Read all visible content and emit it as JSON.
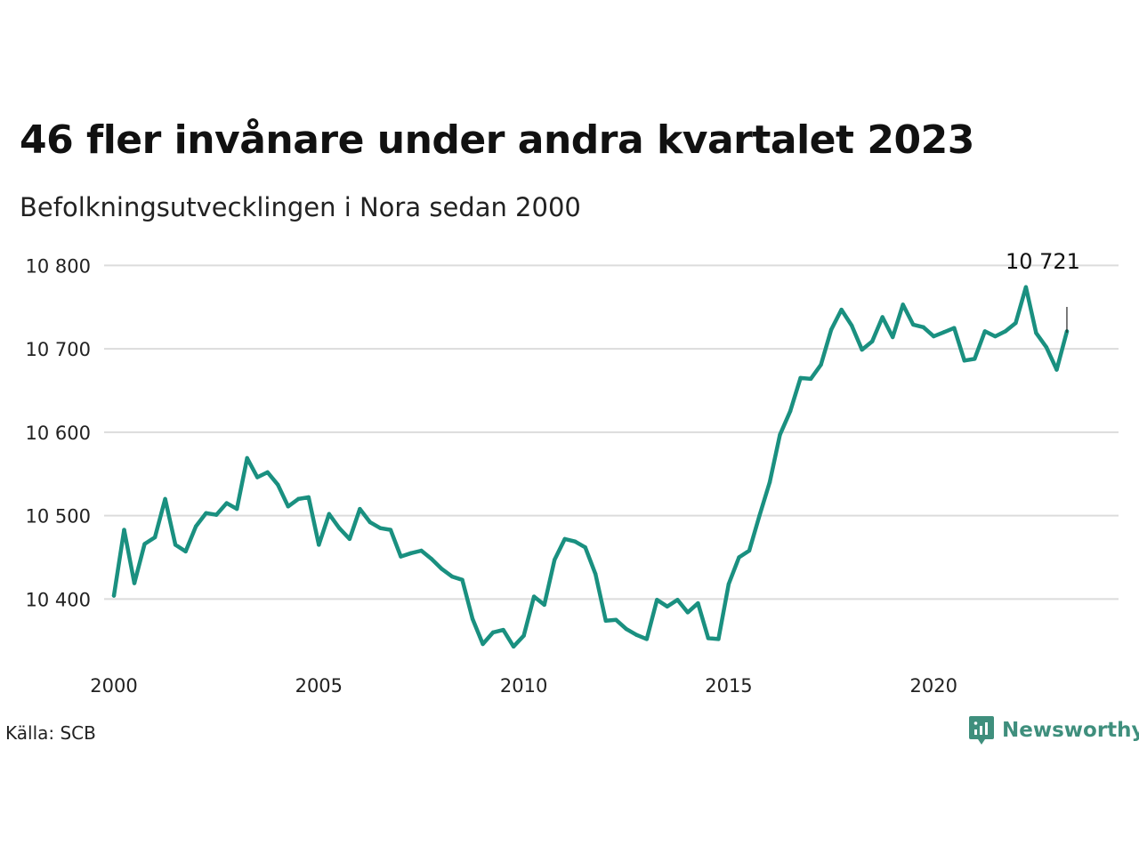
{
  "title": "46 fler invånare under andra kvartalet 2023",
  "subtitle": "Befolkningsutvecklingen i Nora sedan 2000",
  "source": "Källa: SCB",
  "brand": {
    "name": "Newsworthy",
    "icon": "newsworthy-logo-icon",
    "color": "#3f8f7d"
  },
  "chart_data": {
    "type": "line",
    "x_tick_labels": [
      "2000",
      "2005",
      "2010",
      "2015",
      "2020"
    ],
    "x_ticks": [
      2000,
      2005,
      2010,
      2015,
      2020
    ],
    "y_tick_labels": [
      "10 400",
      "10 500",
      "10 600",
      "10 700",
      "10 800"
    ],
    "y_ticks": [
      10400,
      10500,
      10600,
      10700,
      10800
    ],
    "xlim": [
      2000,
      2023.75
    ],
    "ylim": [
      10330,
      10810
    ],
    "grid": true,
    "line_color": "#1a9080",
    "annotation": {
      "label": "10 721",
      "x": 2023.25,
      "value": 10721
    },
    "series": [
      {
        "x": [
          2000.0,
          2000.25,
          2000.5,
          2000.75,
          2001.0,
          2001.25,
          2001.5,
          2001.75,
          2002.0,
          2002.25,
          2002.5,
          2002.75,
          2003.0,
          2003.25,
          2003.5,
          2003.75,
          2004.0,
          2004.25,
          2004.5,
          2004.75,
          2005.0,
          2005.25,
          2005.5,
          2005.75,
          2006.0,
          2006.25,
          2006.5,
          2006.75,
          2007.0,
          2007.25,
          2007.5,
          2007.75,
          2008.0,
          2008.25,
          2008.5,
          2008.75,
          2009.0,
          2009.25,
          2009.5,
          2009.75,
          2010.0,
          2010.25,
          2010.5,
          2010.75,
          2011.0,
          2011.25,
          2011.5,
          2011.75,
          2012.0,
          2012.25,
          2012.5,
          2012.75,
          2013.0,
          2013.25,
          2013.5,
          2013.75,
          2014.0,
          2014.25,
          2014.5,
          2014.75,
          2015.0,
          2015.25,
          2015.5,
          2015.75,
          2016.0,
          2016.25,
          2016.5,
          2016.75,
          2017.0,
          2017.25,
          2017.5,
          2017.75,
          2018.0,
          2018.25,
          2018.5,
          2018.75,
          2019.0,
          2019.25,
          2019.5,
          2019.75,
          2020.0,
          2020.25,
          2020.5,
          2020.75,
          2021.0,
          2021.25,
          2021.5,
          2021.75,
          2022.0,
          2022.25,
          2022.5,
          2022.75,
          2023.0,
          2023.25
        ],
        "values": [
          10404,
          10483,
          10419,
          10466,
          10474,
          10520,
          10465,
          10457,
          10487,
          10503,
          10501,
          10515,
          10508,
          10569,
          10546,
          10552,
          10537,
          10511,
          10520,
          10522,
          10465,
          10502,
          10485,
          10472,
          10508,
          10492,
          10485,
          10483,
          10451,
          10455,
          10458,
          10448,
          10436,
          10427,
          10423,
          10376,
          10346,
          10360,
          10363,
          10343,
          10356,
          10403,
          10393,
          10447,
          10472,
          10469,
          10462,
          10430,
          10374,
          10375,
          10364,
          10357,
          10352,
          10399,
          10391,
          10399,
          10384,
          10395,
          10353,
          10352,
          10418,
          10450,
          10458,
          10500,
          10540,
          10597,
          10625,
          10665,
          10664,
          10681,
          10723,
          10747,
          10728,
          10699,
          10709,
          10738,
          10714,
          10753,
          10729,
          10726,
          10715,
          10720,
          10725,
          10686,
          10688,
          10721,
          10715,
          10721,
          10731,
          10774,
          10719,
          10702,
          10675,
          10721
        ]
      }
    ]
  }
}
